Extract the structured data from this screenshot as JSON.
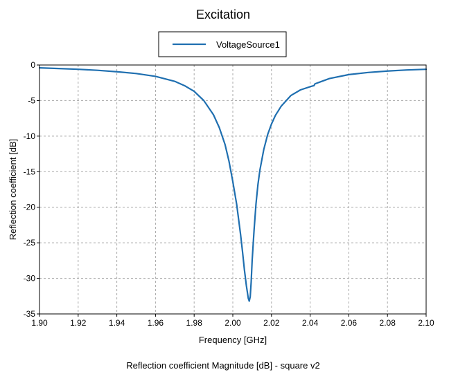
{
  "chart_data": {
    "type": "line",
    "title": "Excitation",
    "xlabel": "Frequency [GHz]",
    "ylabel": "Reflection coefficient [dB]",
    "caption": "Reflection coefficient Magnitude [dB] - square v2",
    "xlim": [
      1.9,
      2.1
    ],
    "ylim": [
      -35,
      0
    ],
    "xticks": [
      1.9,
      1.92,
      1.94,
      1.96,
      1.98,
      2.0,
      2.02,
      2.04,
      2.06,
      2.08,
      2.1
    ],
    "xtick_labels": [
      "1.90",
      "1.92",
      "1.94",
      "1.96",
      "1.98",
      "2.00",
      "2.02",
      "2.04",
      "2.06",
      "2.08",
      "2.10"
    ],
    "yticks": [
      0,
      -5,
      -10,
      -15,
      -20,
      -25,
      -30,
      -35
    ],
    "ytick_labels": [
      "0",
      "-5",
      "-10",
      "-15",
      "-20",
      "-25",
      "-30",
      "-35"
    ],
    "grid": true,
    "legend_position": "top-center",
    "series": [
      {
        "name": "VoltageSource1",
        "color": "#1f6fb0",
        "x": [
          1.9,
          1.91,
          1.92,
          1.93,
          1.94,
          1.95,
          1.96,
          1.97,
          1.975,
          1.98,
          1.985,
          1.99,
          1.993,
          1.996,
          1.998,
          2.0,
          2.002,
          2.004,
          2.005,
          2.006,
          2.007,
          2.008,
          2.0085,
          2.009,
          2.0095,
          2.01,
          2.011,
          2.012,
          2.013,
          2.014,
          2.016,
          2.018,
          2.02,
          2.022,
          2.025,
          2.03,
          2.035,
          2.04,
          2.042,
          2.0425,
          2.045,
          2.05,
          2.06,
          2.07,
          2.08,
          2.09,
          2.1
        ],
        "values": [
          -0.4,
          -0.5,
          -0.6,
          -0.75,
          -0.95,
          -1.2,
          -1.6,
          -2.3,
          -2.9,
          -3.7,
          -5.0,
          -7.0,
          -8.8,
          -11.2,
          -13.5,
          -16.4,
          -19.6,
          -23.8,
          -26.2,
          -28.8,
          -31.0,
          -32.8,
          -33.2,
          -32.6,
          -30.5,
          -27.5,
          -23.2,
          -19.5,
          -16.8,
          -14.8,
          -11.9,
          -9.8,
          -8.3,
          -7.1,
          -5.8,
          -4.3,
          -3.5,
          -3.05,
          -2.9,
          -2.65,
          -2.4,
          -1.9,
          -1.35,
          -1.05,
          -0.85,
          -0.7,
          -0.6
        ]
      }
    ]
  }
}
